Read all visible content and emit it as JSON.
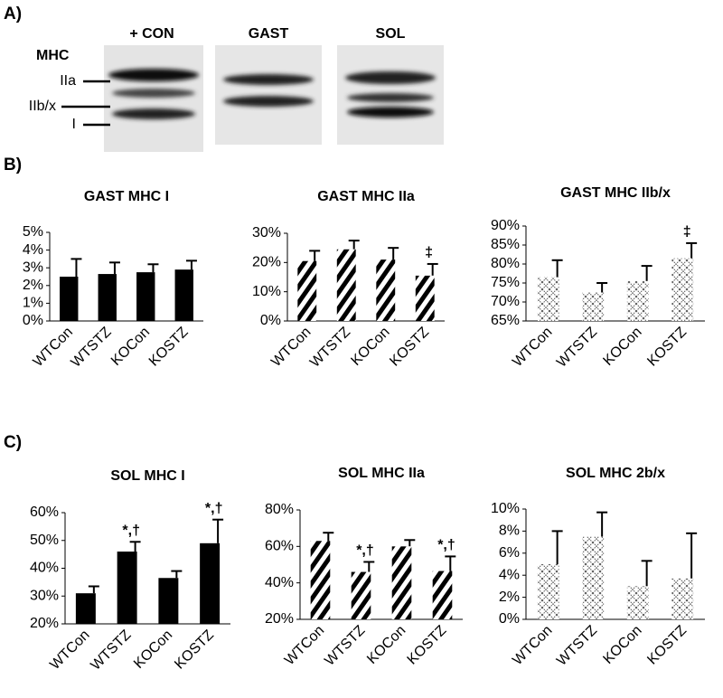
{
  "panel_labels": [
    "A)",
    "B)",
    "C)"
  ],
  "blot": {
    "marker_title": "MHC",
    "bands": [
      "IIa",
      "IIb/x",
      "I"
    ],
    "lanes": [
      {
        "label": "+ CON"
      },
      {
        "label": "GAST"
      },
      {
        "label": "SOL"
      }
    ]
  },
  "chart_data": [
    {
      "type": "bar",
      "title": "GAST MHC I",
      "categories": [
        "WTCon",
        "WTSTZ",
        "KOCon",
        "KOSTZ"
      ],
      "values": [
        2.5,
        2.65,
        2.75,
        2.9
      ],
      "errors": [
        1.0,
        0.65,
        0.45,
        0.5
      ],
      "fill": "solid",
      "color": "#000000",
      "ylim": [
        0,
        5
      ],
      "yticks": [
        {
          "value": 0,
          "label": "0%"
        },
        {
          "value": 1,
          "label": "1%"
        },
        {
          "value": 2,
          "label": "2%"
        },
        {
          "value": 3,
          "label": "3%"
        },
        {
          "value": 4,
          "label": "4%"
        },
        {
          "value": 5,
          "label": "5%"
        }
      ],
      "annotations": []
    },
    {
      "type": "bar",
      "title": "GAST MHC IIa",
      "categories": [
        "WTCon",
        "WTSTZ",
        "KOCon",
        "KOSTZ"
      ],
      "values": [
        20.5,
        24.5,
        21,
        15.5
      ],
      "errors": [
        3.5,
        3,
        4,
        4
      ],
      "fill": "stripes",
      "color": "#000000",
      "ylim": [
        0,
        30
      ],
      "yticks": [
        {
          "value": 0,
          "label": "0%"
        },
        {
          "value": 10,
          "label": "10%"
        },
        {
          "value": 20,
          "label": "20%"
        },
        {
          "value": 30,
          "label": "30%"
        }
      ],
      "annotations": [
        {
          "category": "KOSTZ",
          "text": "‡"
        }
      ]
    },
    {
      "type": "bar",
      "title": "GAST MHC IIb/x",
      "categories": [
        "WTCon",
        "WTSTZ",
        "KOCon",
        "KOSTZ"
      ],
      "values": [
        76.5,
        72.5,
        75.5,
        81.5
      ],
      "errors": [
        4.5,
        2.5,
        4,
        4
      ],
      "fill": "crosshatch",
      "color": "#000000",
      "ylim": [
        65,
        90
      ],
      "yticks": [
        {
          "value": 65,
          "label": "65%"
        },
        {
          "value": 70,
          "label": "70%"
        },
        {
          "value": 75,
          "label": "75%"
        },
        {
          "value": 80,
          "label": "80%"
        },
        {
          "value": 85,
          "label": "85%"
        },
        {
          "value": 90,
          "label": "90%"
        }
      ],
      "annotations": [
        {
          "category": "KOSTZ",
          "text": "‡"
        }
      ]
    },
    {
      "type": "bar",
      "title": "SOL MHC I",
      "categories": [
        "WTCon",
        "WTSTZ",
        "KOCon",
        "KOSTZ"
      ],
      "values": [
        31,
        46,
        36.5,
        49
      ],
      "errors": [
        2.5,
        3.5,
        2.5,
        8.5
      ],
      "fill": "solid",
      "color": "#000000",
      "ylim": [
        20,
        60
      ],
      "yticks": [
        {
          "value": 20,
          "label": "20%"
        },
        {
          "value": 30,
          "label": "30%"
        },
        {
          "value": 40,
          "label": "40%"
        },
        {
          "value": 50,
          "label": "50%"
        },
        {
          "value": 60,
          "label": "60%"
        }
      ],
      "annotations": [
        {
          "category": "WTSTZ",
          "text": "*,†"
        },
        {
          "category": "KOSTZ",
          "text": "*,†"
        }
      ]
    },
    {
      "type": "bar",
      "title": "SOL MHC IIa",
      "categories": [
        "WTCon",
        "WTSTZ",
        "KOCon",
        "KOSTZ"
      ],
      "values": [
        63,
        46,
        60,
        46.5
      ],
      "errors": [
        4.5,
        5.5,
        3.5,
        8
      ],
      "fill": "stripes",
      "color": "#000000",
      "ylim": [
        20,
        80
      ],
      "yticks": [
        {
          "value": 20,
          "label": "20%"
        },
        {
          "value": 40,
          "label": "40%"
        },
        {
          "value": 60,
          "label": "60%"
        },
        {
          "value": 80,
          "label": "80%"
        }
      ],
      "annotations": [
        {
          "category": "WTSTZ",
          "text": "*,†"
        },
        {
          "category": "KOSTZ",
          "text": "*,†"
        }
      ]
    },
    {
      "type": "bar",
      "title": "SOL MHC 2b/x",
      "categories": [
        "WTCon",
        "WTSTZ",
        "KOCon",
        "KOSTZ"
      ],
      "values": [
        5,
        7.5,
        3,
        3.7
      ],
      "errors": [
        3,
        2.2,
        2.3,
        4.1
      ],
      "fill": "crosshatch",
      "color": "#000000",
      "ylim": [
        0,
        10
      ],
      "yticks": [
        {
          "value": 0,
          "label": "0%"
        },
        {
          "value": 2,
          "label": "2%"
        },
        {
          "value": 4,
          "label": "4%"
        },
        {
          "value": 6,
          "label": "6%"
        },
        {
          "value": 8,
          "label": "8%"
        },
        {
          "value": 10,
          "label": "10%"
        }
      ],
      "annotations": []
    }
  ]
}
